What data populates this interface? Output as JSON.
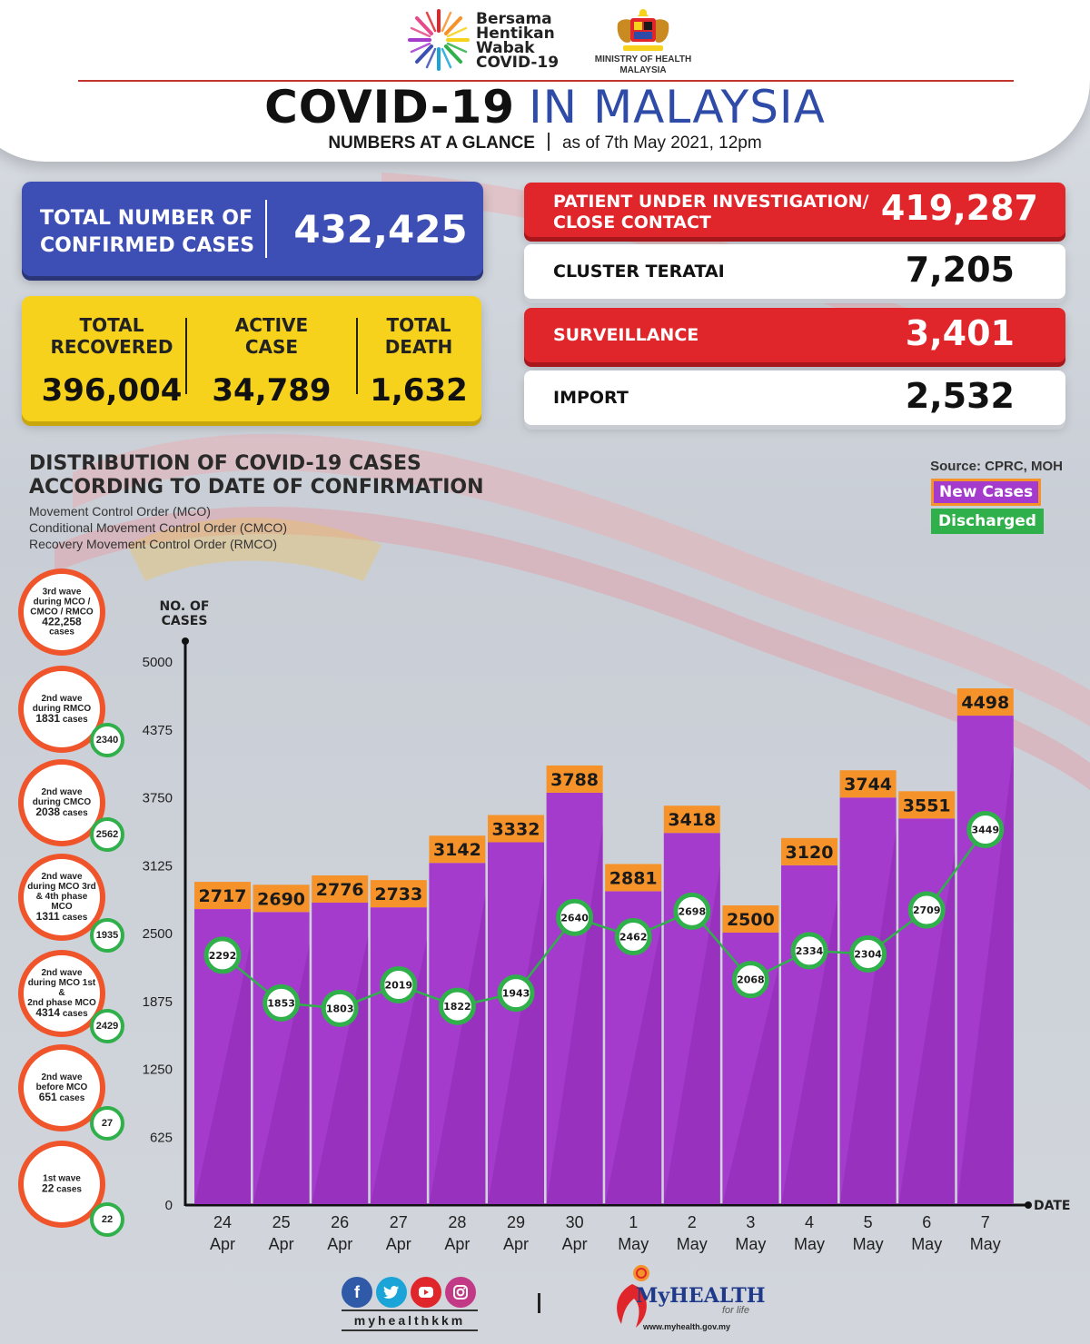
{
  "header": {
    "campaign_lines": [
      "Bersama",
      "Hentikan",
      "Wabak",
      "COVID-19"
    ],
    "ministry_lines": [
      "MINISTRY OF HEALTH",
      "MALAYSIA"
    ],
    "title_bold": "COVID-19",
    "title_light": "IN MALAYSIA",
    "subtitle_bold": "NUMBERS AT A GLANCE",
    "subtitle_date": "as of 7th May 2021, 12pm"
  },
  "confirmed": {
    "label_line1": "TOTAL NUMBER OF",
    "label_line2": "CONFIRMED CASES",
    "value": "432,425"
  },
  "stats": {
    "recovered": {
      "line1": "TOTAL",
      "line2": "RECOVERED",
      "value": "396,004"
    },
    "active": {
      "line1": "ACTIVE",
      "line2": "CASE",
      "value": "34,789"
    },
    "death": {
      "line1": "TOTAL",
      "line2": "DEATH",
      "value": "1,632"
    }
  },
  "categories_panel": [
    {
      "line1": "PATIENT UNDER INVESTIGATION/",
      "line2": "CLOSE CONTACT",
      "value": "419,287",
      "color": "red"
    },
    {
      "line1": "CLUSTER TERATAI",
      "line2": "",
      "value": "7,205",
      "color": "white"
    },
    {
      "line1": "SURVEILLANCE",
      "line2": "",
      "value": "3,401",
      "color": "red"
    },
    {
      "line1": "IMPORT",
      "line2": "",
      "value": "2,532",
      "color": "white"
    }
  ],
  "distribution": {
    "title_line1": "DISTRIBUTION OF COVID-19 CASES",
    "title_line2": "ACCORDING TO DATE OF CONFIRMATION",
    "notes": [
      "Movement Control Order (MCO)",
      "Conditional Movement Control Order (CMCO)",
      "Recovery Movement Control Order (RMCO)"
    ],
    "source": "Source: CPRC, MOH",
    "legend_new": "New Cases",
    "legend_discharged": "Discharged"
  },
  "waves": [
    {
      "lines": [
        "3rd wave",
        "during MCO /",
        "CMCO / RMCO"
      ],
      "count": "422,258",
      "unit": "cases",
      "discharged": ""
    },
    {
      "lines": [
        "2nd wave",
        "during RMCO"
      ],
      "count": "1831",
      "unit": "cases",
      "discharged": "2340"
    },
    {
      "lines": [
        "2nd wave",
        "during CMCO"
      ],
      "count": "2038",
      "unit": "cases",
      "discharged": "2562"
    },
    {
      "lines": [
        "2nd wave",
        "during MCO 3rd",
        "& 4th phase MCO"
      ],
      "count": "1311",
      "unit": "cases",
      "discharged": "1935"
    },
    {
      "lines": [
        "2nd wave",
        "during MCO 1st &",
        "2nd phase MCO"
      ],
      "count": "4314",
      "unit": "cases",
      "discharged": "2429"
    },
    {
      "lines": [
        "2nd wave",
        "before MCO"
      ],
      "count": "651",
      "unit": "cases",
      "discharged": "27"
    },
    {
      "lines": [
        "1st wave"
      ],
      "count": "22",
      "unit": "cases",
      "discharged": "22"
    }
  ],
  "chart_data": {
    "type": "bar",
    "ylabel": "NO. OF CASES",
    "xlabel": "DATE",
    "ylim": [
      0,
      5000
    ],
    "yticks": [
      0,
      625,
      1250,
      1875,
      2500,
      3125,
      3750,
      4375,
      5000
    ],
    "categories": [
      [
        "24",
        "Apr"
      ],
      [
        "25",
        "Apr"
      ],
      [
        "26",
        "Apr"
      ],
      [
        "27",
        "Apr"
      ],
      [
        "28",
        "Apr"
      ],
      [
        "29",
        "Apr"
      ],
      [
        "30",
        "Apr"
      ],
      [
        "1",
        "May"
      ],
      [
        "2",
        "May"
      ],
      [
        "3",
        "May"
      ],
      [
        "4",
        "May"
      ],
      [
        "5",
        "May"
      ],
      [
        "6",
        "May"
      ],
      [
        "7",
        "May"
      ]
    ],
    "series": [
      {
        "name": "New Cases",
        "type": "bar",
        "color": "#a53bcd",
        "label_color": "#f5932a",
        "values": [
          2717,
          2690,
          2776,
          2733,
          3142,
          3332,
          3788,
          2881,
          3418,
          2500,
          3120,
          3744,
          3551,
          4498
        ]
      },
      {
        "name": "Discharged",
        "type": "line",
        "color": "#2fb04a",
        "values": [
          2292,
          1853,
          1803,
          2019,
          1822,
          1943,
          2640,
          2462,
          2698,
          2068,
          2334,
          2304,
          2709,
          3449
        ]
      }
    ]
  },
  "footer": {
    "social_handle": "myhealthkkm",
    "brand_name": "MyHEALTH",
    "brand_tagline": "for life",
    "brand_url": "www.myhealth.gov.my"
  },
  "colors": {
    "confirmed_blue": "#3d4fb4",
    "stats_yellow": "#f6d21c",
    "alert_red": "#e0262b",
    "bar_purple": "#a53bcd",
    "label_orange": "#f5932a",
    "discharge_green": "#2fb04a"
  }
}
